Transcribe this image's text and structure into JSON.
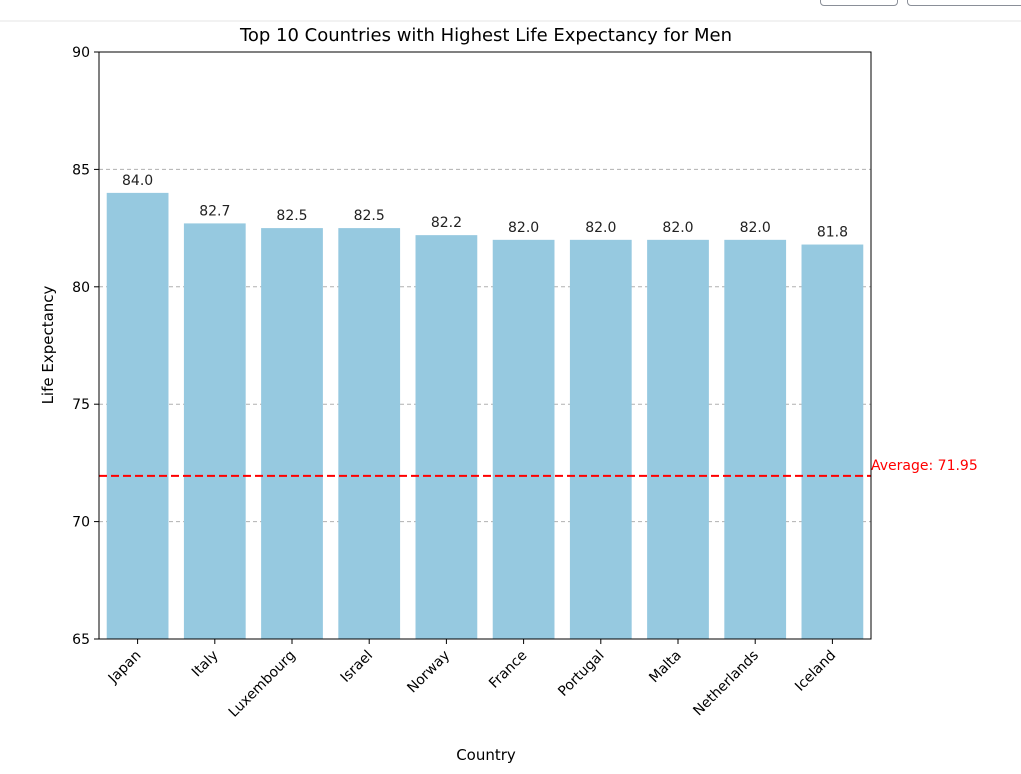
{
  "chart_data": {
    "type": "bar",
    "title": "Top 10 Countries with Highest Life Expectancy for Men",
    "xlabel": "Country",
    "ylabel": "Life Expectancy",
    "categories": [
      "Japan",
      "Italy",
      "Luxembourg",
      "Israel",
      "Norway",
      "France",
      "Portugal",
      "Malta",
      "Netherlands",
      "Iceland"
    ],
    "values": [
      84.0,
      82.7,
      82.5,
      82.5,
      82.2,
      82.0,
      82.0,
      82.0,
      82.0,
      81.8
    ],
    "value_labels": [
      "84.0",
      "82.7",
      "82.5",
      "82.5",
      "82.2",
      "82.0",
      "82.0",
      "82.0",
      "82.0",
      "81.8"
    ],
    "ylim": [
      65,
      90
    ],
    "yticks": [
      65,
      70,
      75,
      80,
      85,
      90
    ],
    "grid": "y-dashed",
    "bar_color": "#96c9e0",
    "reference_line": {
      "value": 71.95,
      "label": "Average: 71.95",
      "color": "#ff0000",
      "style": "dashed"
    }
  }
}
